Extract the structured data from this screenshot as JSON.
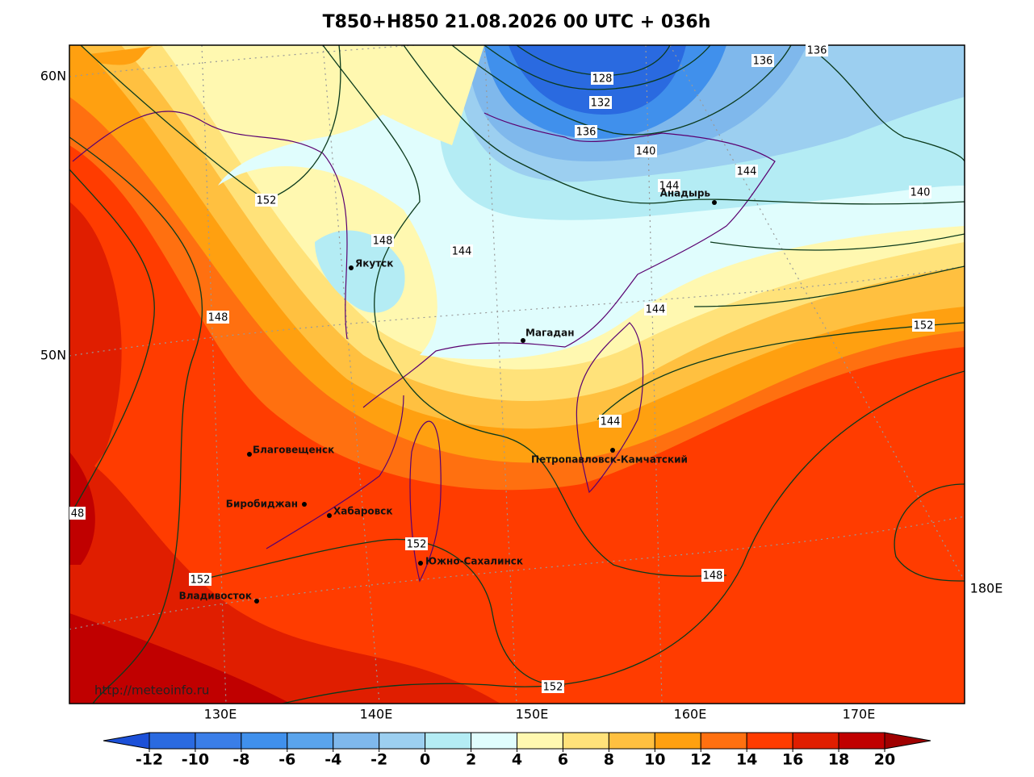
{
  "title": "T850+H850 21.08.2026 00 UTC + 036h",
  "lat_labels": [
    "60N",
    "50N"
  ],
  "lon_labels": [
    "130E",
    "140E",
    "150E",
    "160E",
    "170E",
    "180E"
  ],
  "cities": [
    "Якутск",
    "Анадырь",
    "Магадан",
    "Благовещенск",
    "Петропавловск-Камчатский",
    "Биробиджан",
    "Хабаровск",
    "Южно-Сахалинск",
    "Владивосток"
  ],
  "contour_labels": [
    128,
    132,
    136,
    136,
    136,
    140,
    140,
    144,
    144,
    152,
    148,
    144,
    148,
    144,
    152,
    144,
    48,
    152,
    152,
    148,
    152
  ],
  "credit": "http://meteoinfo.ru",
  "colorbar": {
    "ticks": [
      -12,
      -10,
      -8,
      -6,
      -4,
      -2,
      0,
      2,
      4,
      6,
      8,
      10,
      12,
      14,
      16,
      18,
      20
    ],
    "colors": [
      "#2a6ae0",
      "#3a7ee8",
      "#4090ec",
      "#5aa4ec",
      "#7fb8ec",
      "#9ccff0",
      "#b4ecf4",
      "#e0fdfd",
      "#fff8b0",
      "#ffe27a",
      "#ffc040",
      "#ffa010",
      "#ff7010",
      "#ff3c00",
      "#e01e00",
      "#c00000"
    ],
    "under_color": "#1c50d8",
    "over_color": "#a00000"
  }
}
